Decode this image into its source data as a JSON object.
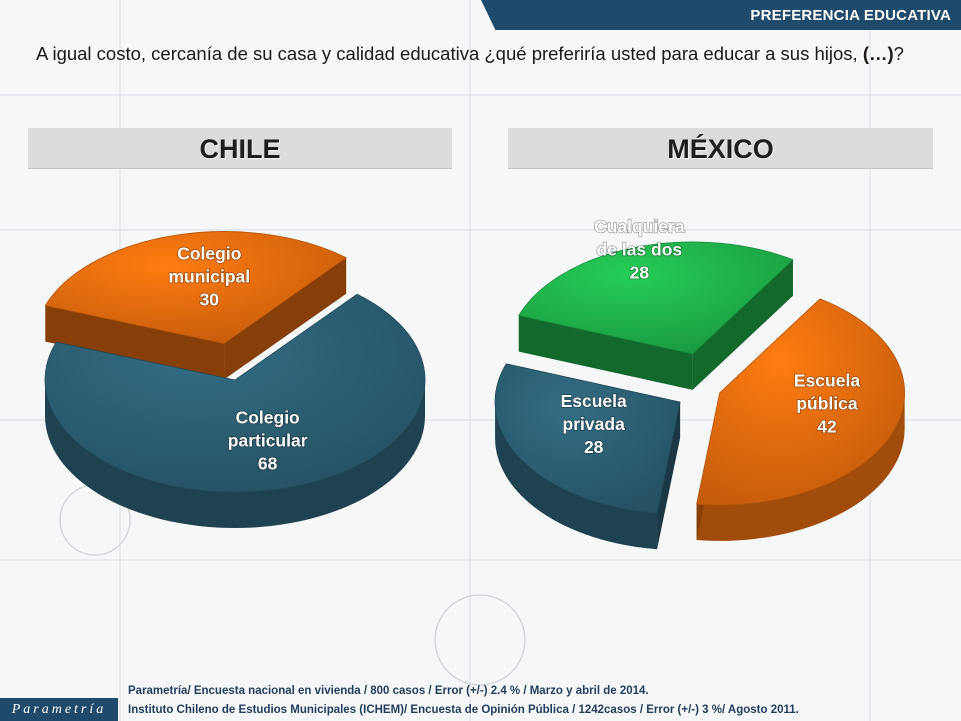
{
  "header": {
    "section_title": "PREFERENCIA EDUCATIVA"
  },
  "question": {
    "text": "A igual costo, cercanía de su casa y calidad educativa ¿qué preferiría usted para educar a sus hijos, ",
    "emphasis": "(…)",
    "suffix": "?"
  },
  "chart_data": [
    {
      "type": "pie",
      "title": "CHILE",
      "slices": [
        {
          "label_lines": [
            "Colegio",
            "particular"
          ],
          "value": 68,
          "color": "#2b5c70"
        },
        {
          "label_lines": [
            "Colegio",
            "municipal"
          ],
          "value": 30,
          "color": "#e0690e"
        }
      ]
    },
    {
      "type": "pie",
      "title": "MÉXICO",
      "slices": [
        {
          "label_lines": [
            "Cualquiera",
            "de las dos"
          ],
          "value": 28,
          "color": "#1fae4a"
        },
        {
          "label_lines": [
            "Escuela",
            "pública"
          ],
          "value": 42,
          "color": "#e0690e"
        },
        {
          "label_lines": [
            "Escuela",
            "privada"
          ],
          "value": 28,
          "color": "#2b5c70"
        }
      ]
    }
  ],
  "footer": {
    "logo_text": "Parametría",
    "source_lines": [
      "Parametría/ Encuesta nacional en vivienda / 800 casos / Error (+/-) 2.4 % / Marzo y abril de 2014.",
      "Instituto Chileno de Estudios Municipales (ICHEM)/ Encuesta de Opinión Pública / 1242casos / Error (+/-) 3 %/ Agosto 2011."
    ]
  }
}
